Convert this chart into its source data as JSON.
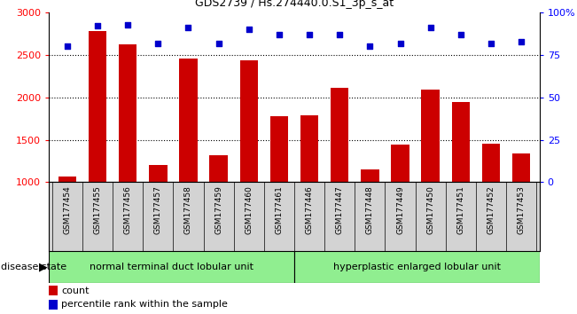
{
  "title": "GDS2739 / Hs.274440.0.S1_3p_s_at",
  "categories": [
    "GSM177454",
    "GSM177455",
    "GSM177456",
    "GSM177457",
    "GSM177458",
    "GSM177459",
    "GSM177460",
    "GSM177461",
    "GSM177446",
    "GSM177447",
    "GSM177448",
    "GSM177449",
    "GSM177450",
    "GSM177451",
    "GSM177452",
    "GSM177453"
  ],
  "counts": [
    1065,
    2780,
    2620,
    1205,
    2460,
    1320,
    2440,
    1780,
    1785,
    2110,
    1150,
    1440,
    2095,
    1940,
    1455,
    1340
  ],
  "percentiles": [
    80,
    92,
    93,
    82,
    91,
    82,
    90,
    87,
    87,
    87,
    80,
    82,
    91,
    87,
    82,
    83
  ],
  "group1_label": "normal terminal duct lobular unit",
  "group1_count": 8,
  "group2_label": "hyperplastic enlarged lobular unit",
  "group2_count": 8,
  "bar_color": "#cc0000",
  "dot_color": "#0000cc",
  "ylim_left": [
    1000,
    3000
  ],
  "ylim_right": [
    0,
    100
  ],
  "yticks_left": [
    1000,
    1500,
    2000,
    2500,
    3000
  ],
  "yticks_right": [
    0,
    25,
    50,
    75,
    100
  ],
  "ytick_labels_right": [
    "0",
    "25",
    "50",
    "75",
    "100%"
  ],
  "grid_levels": [
    1500,
    2000,
    2500
  ],
  "grid_color": "#000000",
  "bg_color_plot": "#ffffff",
  "bg_color_xlabels": "#d3d3d3",
  "bg_color_group": "#90ee90",
  "disease_state_label": "disease state",
  "legend_count_label": "count",
  "legend_percentile_label": "percentile rank within the sample"
}
